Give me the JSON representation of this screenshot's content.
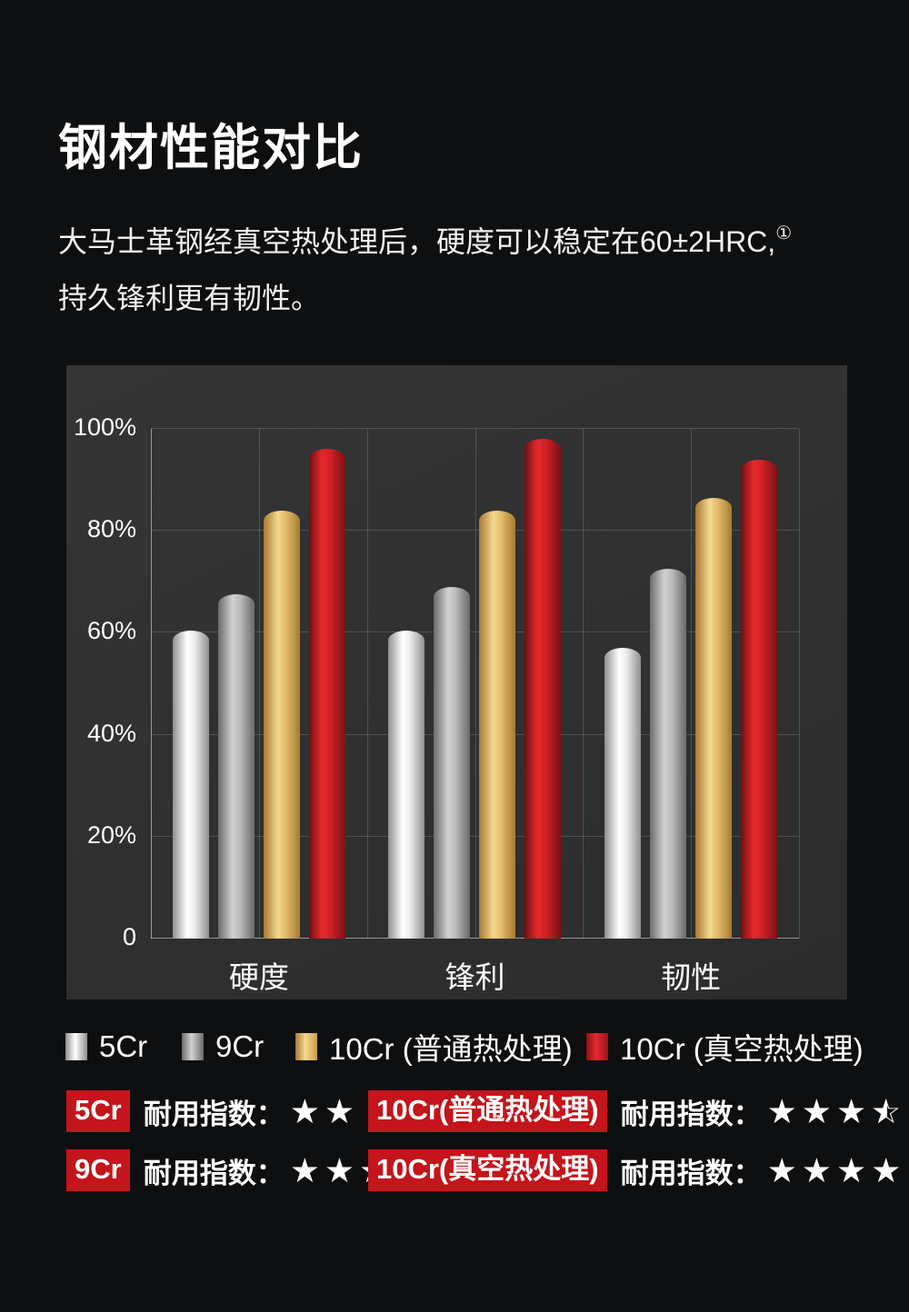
{
  "header": {
    "title": "钢材性能对比",
    "subtitle_line1": "大马士革钢经真空热处理后，硬度可以稳定在60±2HRC,",
    "footnote_marker": "①",
    "subtitle_line2": "持久锋利更有韧性。"
  },
  "colors": {
    "page_background": "#0e0f10",
    "panel_background": "#303031",
    "badge_red": "#c3151b",
    "star_white": "#ffffff",
    "bar_silver": "#ececec",
    "bar_gray": "#bdbdbd",
    "bar_gold": "#e3bd6b",
    "bar_red": "#cf2125"
  },
  "chart_data": {
    "type": "bar",
    "categories": [
      "硬度",
      "锋利",
      "韧性"
    ],
    "series": [
      {
        "key": "5cr",
        "name": "5Cr",
        "color_key": "silver",
        "values": [
          60.5,
          60.5,
          57
        ]
      },
      {
        "key": "9cr",
        "name": "9Cr",
        "color_key": "gray",
        "values": [
          67.5,
          69,
          72.5
        ]
      },
      {
        "key": "10cr-normal",
        "name": "10Cr (普通热处理)",
        "color_key": "gold",
        "values": [
          84,
          84,
          86.5
        ]
      },
      {
        "key": "10cr-vacuum",
        "name": "10Cr (真空热处理)",
        "color_key": "red",
        "values": [
          96,
          98,
          94
        ]
      }
    ],
    "ylim": [
      0,
      100
    ],
    "yticks": [
      {
        "v": 100,
        "label": "100%"
      },
      {
        "v": 80,
        "label": "80%"
      },
      {
        "v": 60,
        "label": "60%"
      },
      {
        "v": 40,
        "label": "40%"
      },
      {
        "v": 20,
        "label": "20%"
      },
      {
        "v": 0,
        "label": "0"
      }
    ],
    "grid": true,
    "legend_position": "bottom"
  },
  "ratings": {
    "label": "耐用指数：",
    "rows": [
      [
        {
          "badge": "5Cr",
          "stars": 2
        },
        {
          "badge": "10Cr(普通热处理)",
          "stars": 3.5
        }
      ],
      [
        {
          "badge": "9Cr",
          "stars": 3
        },
        {
          "badge": "10Cr(真空热处理)",
          "stars": 4
        }
      ]
    ]
  }
}
